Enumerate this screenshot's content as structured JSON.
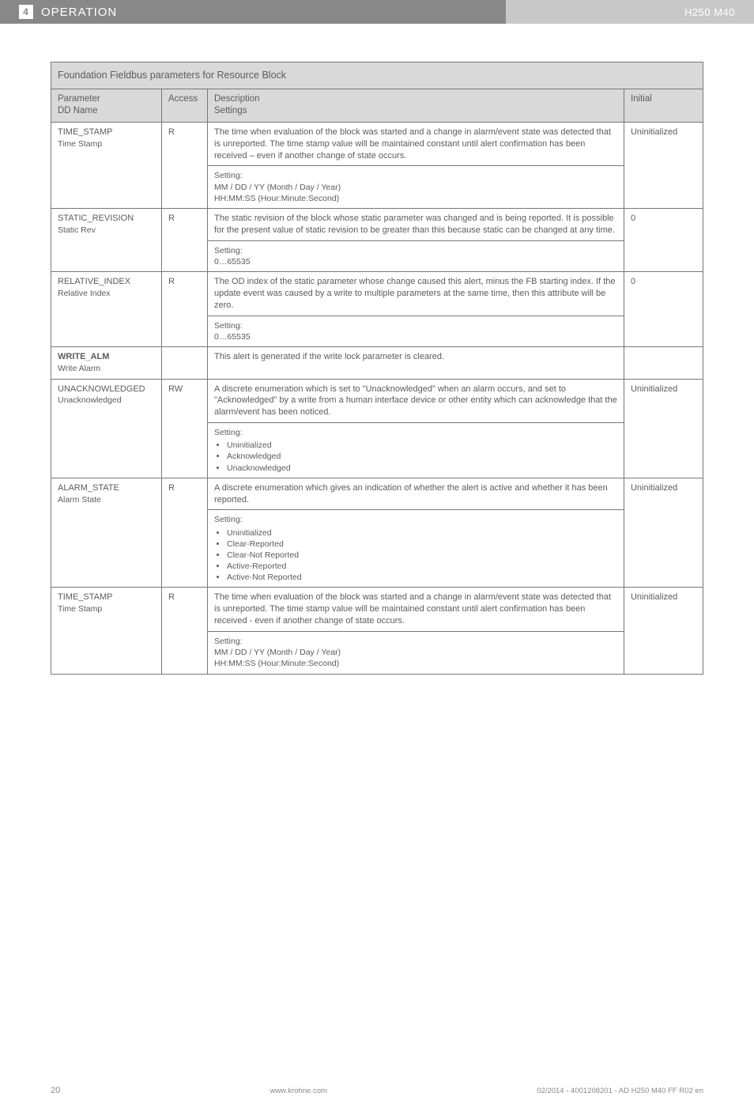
{
  "header": {
    "section_num": "4",
    "section_title": "OPERATION",
    "product": "H250 M40"
  },
  "table": {
    "title": "Foundation Fieldbus parameters for Resource Block",
    "columns": {
      "param": "Parameter",
      "param_sub": "DD Name",
      "access": "Access",
      "desc": "Description",
      "desc_sub": "Settings",
      "initial": "Initial"
    },
    "rows": [
      {
        "param_main": "TIME_STAMP",
        "param_sub": "Time Stamp",
        "access": "R",
        "desc": "The time when evaluation of the block was started and a change in alarm/event state was detected that is unreported. The time stamp value will be maintained constant until alert confirmation has been received – even if another change of state occurs.",
        "setting_label": "Setting:",
        "setting_body": "MM / DD / YY (Month / Day / Year)\nHH:MM:SS (Hour:Minute:Second)",
        "initial": "Uninitialized"
      },
      {
        "param_main": "STATIC_REVISION",
        "param_sub": "Static Rev",
        "access": "R",
        "desc": "The static revision of the block whose static parameter was changed and is being reported. It is possible for the present value of static revision to be greater than this because static can be changed at any time.",
        "setting_label": "Setting:",
        "setting_body": "0…65535",
        "initial": "0"
      },
      {
        "param_main": "RELATIVE_INDEX",
        "param_sub": "Relative Index",
        "access": "R",
        "desc": "The OD index of the static parameter whose change caused this alert, minus the FB starting index. If the update event was caused by a write to multiple parameters at the same time, then this attribute will be zero.",
        "setting_label": "Setting:",
        "setting_body": "0…65535",
        "initial": "0"
      },
      {
        "param_main": "WRITE_ALM",
        "param_sub": "Write Alarm",
        "access": "",
        "desc": "This alert is generated if the write lock parameter is cleared.",
        "initial": ""
      },
      {
        "param_main": "UNACKNOWLEDGED",
        "param_sub": "Unacknowledged",
        "access": "RW",
        "desc": "A discrete enumeration which is set to \"Unacknowledged\" when an alarm occurs, and set to \"Acknowledged\" by a write from a human interface device or other entity which can acknowledge that the alarm/event has been noticed.",
        "setting_label": "Setting:",
        "setting_items": [
          "Uninitialized",
          "Acknowledged",
          "Unacknowledged"
        ],
        "initial": "Uninitialized"
      },
      {
        "param_main": "ALARM_STATE",
        "param_sub": "Alarm State",
        "access": "R",
        "desc": "A discrete enumeration which gives an indication of whether the alert is active and whether it has been reported.",
        "setting_label": "Setting:",
        "setting_items": [
          "Uninitialized",
          "Clear-Reported",
          "Clear-Not Reported",
          "Active-Reported",
          "Active-Not Reported"
        ],
        "initial": "Uninitialized"
      },
      {
        "param_main": "TIME_STAMP",
        "param_sub": "Time Stamp",
        "access": "R",
        "desc": "The time when evaluation of the block was started and a change in alarm/event state was detected that is unreported. The time stamp value will be maintained constant until alert confirmation has been received - even if another change of state occurs.",
        "setting_label": "Setting:",
        "setting_body": "MM / DD / YY (Month / Day / Year)\nHH:MM:SS (Hour:Minute:Second)",
        "initial": "Uninitialized"
      }
    ]
  },
  "footer": {
    "page": "20",
    "site": "www.krohne.com",
    "doc": "02/2014 - 4001208201 - AD H250 M40 FF R02 en"
  }
}
